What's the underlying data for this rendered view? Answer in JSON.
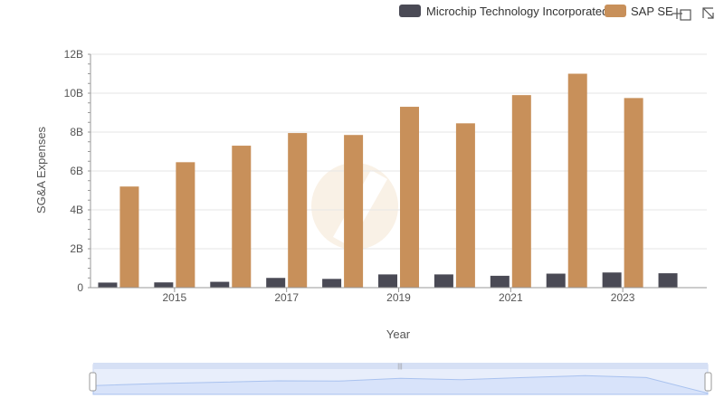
{
  "chart_data": {
    "type": "bar",
    "title": "",
    "xlabel": "Year",
    "ylabel": "SG&A Expenses",
    "x_ticks": [
      "2015",
      "2017",
      "2019",
      "2021",
      "2023"
    ],
    "y_ticks": [
      "0",
      "2B",
      "4B",
      "6B",
      "8B",
      "10B",
      "12B"
    ],
    "ylim": [
      0,
      12000000000
    ],
    "grid": true,
    "legend_position": "top-right",
    "categories": [
      "2014",
      "2015",
      "2016",
      "2017",
      "2018",
      "2019",
      "2020",
      "2021",
      "2022",
      "2023",
      "2024"
    ],
    "series": [
      {
        "name": "Microchip Technology Incorporated",
        "color": "#4a4a55",
        "values": [
          260000000,
          270000000,
          300000000,
          500000000,
          450000000,
          680000000,
          680000000,
          610000000,
          720000000,
          780000000,
          740000000
        ]
      },
      {
        "name": "SAP SE",
        "color": "#c8905a",
        "values": [
          5200000000,
          6450000000,
          7300000000,
          7950000000,
          7850000000,
          9300000000,
          8450000000,
          9900000000,
          11000000000,
          9750000000,
          null
        ]
      }
    ]
  },
  "toolbar": {
    "icons": [
      "zoom-icon",
      "reset-zoom-icon"
    ]
  },
  "navigator": {
    "series_color": "#a9c2ef"
  },
  "watermark": {
    "color": "#f5e6d3"
  }
}
